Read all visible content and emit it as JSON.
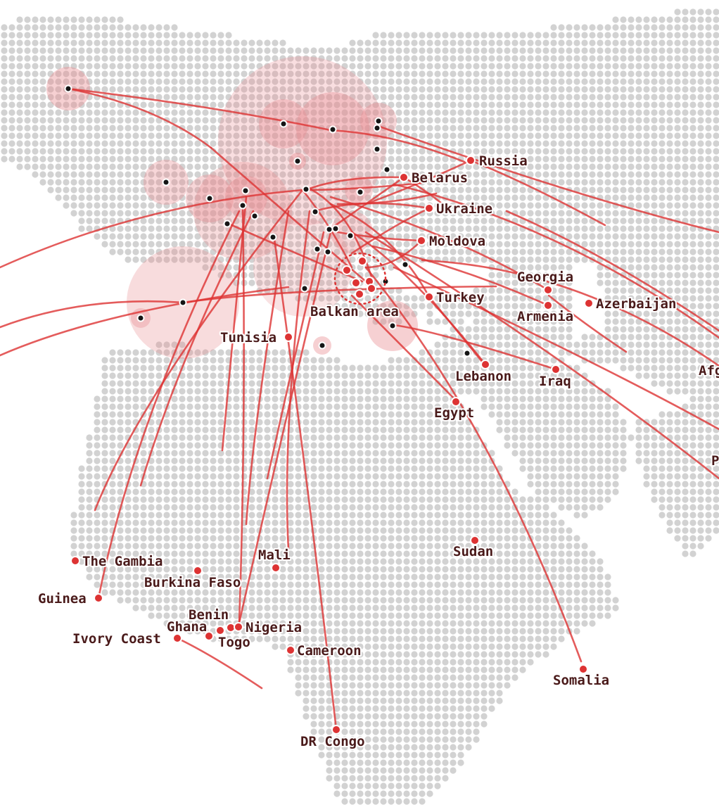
{
  "colors": {
    "land_dot": "#d2d2d2",
    "route": "#dd3333",
    "marker": "#dd3333",
    "bubble": "#e88a8e",
    "city_dot": "#151515",
    "label": "#4a1a1a"
  },
  "icons": {
    "destination_marker": "red-circle-marker-icon",
    "city_marker": "black-dot-icon"
  },
  "labels": {
    "russia": "Russia",
    "belarus": "Belarus",
    "ukraine": "Ukraine",
    "moldova": "Moldova",
    "georgia": "Georgia",
    "armenia": "Armenia",
    "azerbaijan": "Azerbaijan",
    "turkey": "Turkey",
    "balkan": "Balkan area",
    "tunisia": "Tunisia",
    "lebanon": "Lebanon",
    "iraq": "Iraq",
    "egypt": "Egypt",
    "afghanistan": "Afg",
    "pakistan": "P",
    "sudan": "Sudan",
    "mali": "Mali",
    "gambia": "The Gambia",
    "burkina": "Burkina Faso",
    "guinea": "Guinea",
    "benin": "Benin",
    "ghana": "Ghana",
    "nigeria": "Nigeria",
    "ivory": "Ivory Coast",
    "togo": "Togo",
    "cameroon": "Cameroon",
    "somalia": "Somalia",
    "drcongo": "DR Congo"
  }
}
